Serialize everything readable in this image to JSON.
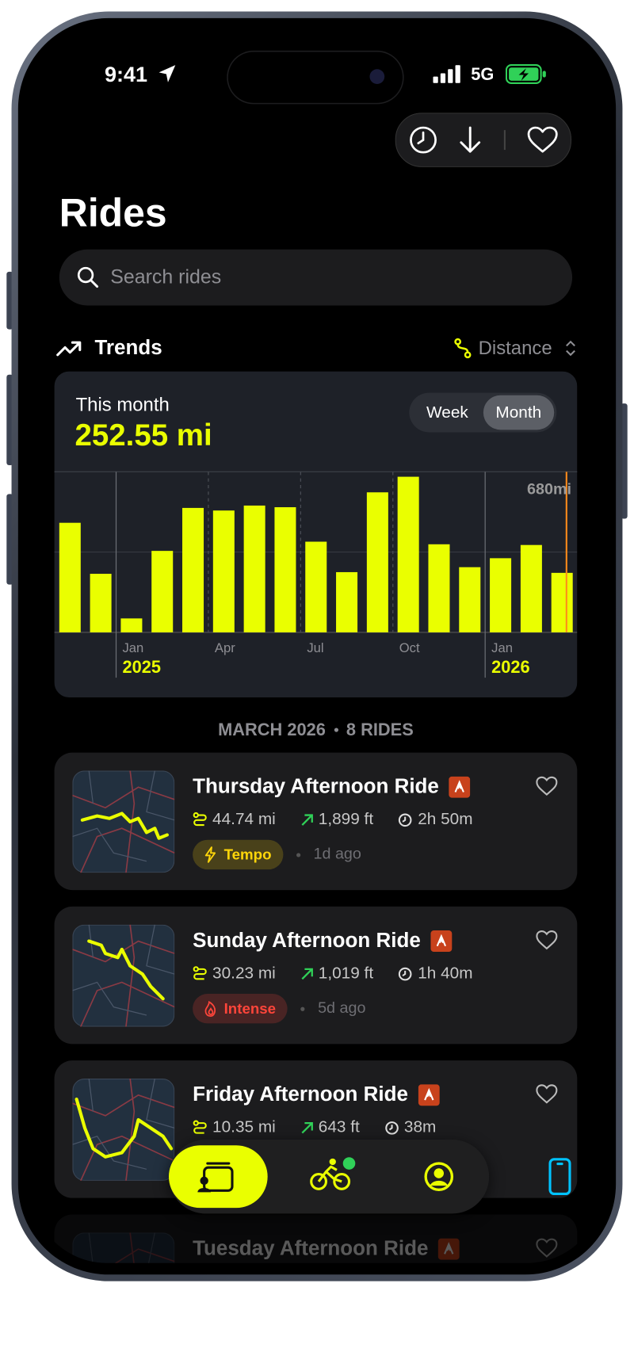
{
  "status_bar": {
    "time": "9:41",
    "network": "5G"
  },
  "header": {
    "title": "Rides",
    "search_placeholder": "Search rides"
  },
  "trends": {
    "title": "Trends",
    "metric": "Distance",
    "period_label": "This month",
    "period_value": "252.55 mi",
    "toggle": [
      "Week",
      "Month"
    ],
    "selected": "Month"
  },
  "chart_data": {
    "type": "bar",
    "color": "#eaff00",
    "categories": [
      null,
      null,
      "Jan",
      null,
      null,
      "Apr",
      null,
      null,
      "Jul",
      null,
      null,
      "Oct",
      null,
      null,
      "Jan",
      null,
      null
    ],
    "years": [
      null,
      null,
      "2025",
      null,
      null,
      null,
      null,
      null,
      null,
      null,
      null,
      null,
      null,
      null,
      "2026",
      null,
      null
    ],
    "values": [
      464,
      248,
      59,
      345,
      527,
      516,
      537,
      530,
      384,
      255,
      593,
      659,
      373,
      276,
      314,
      370,
      252
    ],
    "ylim": [
      0,
      680
    ],
    "gridlines": [
      340,
      680
    ],
    "max_label": {
      "value": 680,
      "label": "680mi"
    }
  },
  "section": {
    "month": "MARCH 2026",
    "count": "8 RIDES"
  },
  "rides": [
    {
      "title": "Thursday Afternoon Ride",
      "distance": "44.74 mi",
      "elevation": "1,899 ft",
      "duration": "2h 50m",
      "effort": "Tempo",
      "effort_color": "#ffd60a",
      "ago": "1d ago"
    },
    {
      "title": "Sunday Afternoon Ride",
      "distance": "30.23 mi",
      "elevation": "1,019 ft",
      "duration": "1h 40m",
      "effort": "Intense",
      "effort_color": "#ff453a",
      "ago": "5d ago"
    },
    {
      "title": "Friday Afternoon Ride",
      "distance": "10.35 mi",
      "elevation": "643 ft",
      "duration": "38m"
    },
    {
      "title": "Tuesday Afternoon Ride"
    }
  ]
}
